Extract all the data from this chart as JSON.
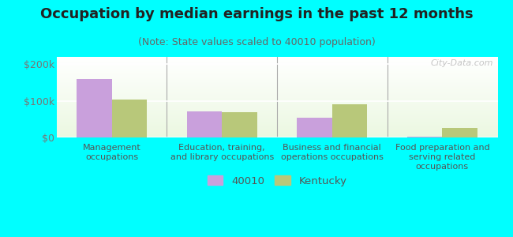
{
  "title": "Occupation by median earnings in the past 12 months",
  "subtitle": "(Note: State values scaled to 40010 population)",
  "categories": [
    "Management\noccupations",
    "Education, training,\nand library occupations",
    "Business and financial\noperations occupations",
    "Food preparation and\nserving related\noccupations"
  ],
  "values_40010": [
    160000,
    72000,
    55000,
    2000
  ],
  "values_kentucky": [
    103000,
    70000,
    90000,
    25000
  ],
  "color_40010": "#c9a0dc",
  "color_kentucky": "#b8c87a",
  "ylim": [
    0,
    220000
  ],
  "yticks": [
    0,
    100000,
    200000
  ],
  "ytick_labels": [
    "$0",
    "$100k",
    "$200k"
  ],
  "background_color": "#00ffff",
  "legend_label_40010": "40010",
  "legend_label_kentucky": "Kentucky",
  "watermark": "City-Data.com",
  "bar_width": 0.32,
  "title_fontsize": 13,
  "subtitle_fontsize": 9,
  "tick_fontsize": 9,
  "cat_fontsize": 8
}
